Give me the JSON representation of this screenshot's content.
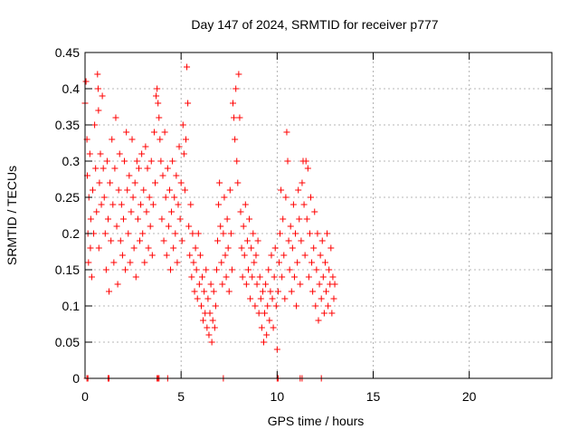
{
  "colors": {
    "series": "#ff0000",
    "grid": "#a0a0a0",
    "axis": "#000000",
    "background": "#ffffff"
  },
  "chart_data": {
    "type": "scatter",
    "title": "Day 147 of 2024, SRMTID for receiver p777",
    "xlabel": "GPS time / hours",
    "ylabel": "SRMTID / TECUs",
    "xlim": [
      0,
      24.3
    ],
    "ylim": [
      0,
      0.45
    ],
    "xticks": [
      0,
      5,
      10,
      15,
      20
    ],
    "xtick_labels": [
      "0",
      "5",
      "10",
      "15",
      "20"
    ],
    "yticks": [
      0,
      0.05,
      0.1,
      0.15,
      0.2,
      0.25,
      0.3,
      0.35,
      0.4,
      0.45
    ],
    "ytick_labels": [
      "0",
      "0.05",
      "0.1",
      "0.15",
      "0.2",
      "0.25",
      "0.3",
      "0.35",
      "0.4",
      "0.45"
    ],
    "grid": true,
    "legend": "none",
    "marker": "plus",
    "series": [
      {
        "name": "SRMTID",
        "points": [
          [
            0.0,
            0.38
          ],
          [
            0.05,
            0.41
          ],
          [
            0.1,
            0.33
          ],
          [
            0.12,
            0.28
          ],
          [
            0.15,
            0.2
          ],
          [
            0.18,
            0.16
          ],
          [
            0.2,
            0.25
          ],
          [
            0.25,
            0.31
          ],
          [
            0.28,
            0.18
          ],
          [
            0.3,
            0.22
          ],
          [
            0.35,
            0.14
          ],
          [
            0.4,
            0.26
          ],
          [
            0.45,
            0.2
          ],
          [
            0.5,
            0.35
          ],
          [
            0.55,
            0.29
          ],
          [
            0.6,
            0.23
          ],
          [
            0.65,
            0.42
          ],
          [
            0.68,
            0.4
          ],
          [
            0.7,
            0.37
          ],
          [
            0.72,
            0.18
          ],
          [
            0.75,
            0.27
          ],
          [
            0.8,
            0.31
          ],
          [
            0.85,
            0.24
          ],
          [
            0.9,
            0.39
          ],
          [
            0.95,
            0.29
          ],
          [
            1.0,
            0.25
          ],
          [
            1.05,
            0.2
          ],
          [
            1.1,
            0.15
          ],
          [
            1.15,
            0.3
          ],
          [
            1.2,
            0.22
          ],
          [
            1.25,
            0.12
          ],
          [
            1.3,
            0.27
          ],
          [
            1.35,
            0.19
          ],
          [
            1.4,
            0.33
          ],
          [
            1.45,
            0.24
          ],
          [
            1.5,
            0.16
          ],
          [
            1.55,
            0.29
          ],
          [
            1.6,
            0.36
          ],
          [
            1.65,
            0.21
          ],
          [
            1.7,
            0.13
          ],
          [
            1.75,
            0.26
          ],
          [
            1.8,
            0.31
          ],
          [
            1.85,
            0.19
          ],
          [
            1.9,
            0.24
          ],
          [
            1.95,
            0.17
          ],
          [
            2.0,
            0.22
          ],
          [
            2.05,
            0.3
          ],
          [
            2.1,
            0.15
          ],
          [
            2.15,
            0.34
          ],
          [
            2.2,
            0.26
          ],
          [
            2.25,
            0.2
          ],
          [
            2.3,
            0.28
          ],
          [
            2.35,
            0.16
          ],
          [
            2.4,
            0.23
          ],
          [
            2.45,
            0.33
          ],
          [
            2.5,
            0.25
          ],
          [
            2.55,
            0.18
          ],
          [
            2.6,
            0.27
          ],
          [
            2.65,
            0.14
          ],
          [
            2.7,
            0.3
          ],
          [
            2.75,
            0.22
          ],
          [
            2.8,
            0.29
          ],
          [
            2.85,
            0.19
          ],
          [
            2.9,
            0.24
          ],
          [
            2.95,
            0.31
          ],
          [
            3.0,
            0.2
          ],
          [
            3.05,
            0.26
          ],
          [
            3.1,
            0.16
          ],
          [
            3.15,
            0.32
          ],
          [
            3.2,
            0.23
          ],
          [
            3.25,
            0.29
          ],
          [
            3.3,
            0.18
          ],
          [
            3.35,
            0.25
          ],
          [
            3.4,
            0.21
          ],
          [
            3.45,
            0.3
          ],
          [
            3.5,
            0.17
          ],
          [
            3.55,
            0.24
          ],
          [
            3.6,
            0.34
          ],
          [
            3.65,
            0.27
          ],
          [
            3.7,
            0.39
          ],
          [
            3.75,
            0.4
          ],
          [
            3.8,
            0.38
          ],
          [
            3.85,
            0.36
          ],
          [
            3.9,
            0.33
          ],
          [
            3.95,
            0.3
          ],
          [
            4.0,
            0.22
          ],
          [
            4.05,
            0.28
          ],
          [
            4.1,
            0.19
          ],
          [
            4.15,
            0.34
          ],
          [
            4.2,
            0.25
          ],
          [
            4.25,
            0.17
          ],
          [
            4.3,
            0.29
          ],
          [
            4.35,
            0.21
          ],
          [
            4.4,
            0.26
          ],
          [
            4.45,
            0.15
          ],
          [
            4.5,
            0.23
          ],
          [
            4.55,
            0.3
          ],
          [
            4.6,
            0.18
          ],
          [
            4.65,
            0.25
          ],
          [
            4.7,
            0.2
          ],
          [
            4.75,
            0.28
          ],
          [
            4.8,
            0.16
          ],
          [
            4.85,
            0.24
          ],
          [
            4.9,
            0.32
          ],
          [
            4.95,
            0.22
          ],
          [
            5.0,
            0.27
          ],
          [
            5.05,
            0.19
          ],
          [
            5.1,
            0.35
          ],
          [
            5.15,
            0.31
          ],
          [
            5.2,
            0.26
          ],
          [
            5.25,
            0.33
          ],
          [
            5.3,
            0.43
          ],
          [
            5.35,
            0.38
          ],
          [
            5.4,
            0.21
          ],
          [
            5.45,
            0.17
          ],
          [
            5.5,
            0.24
          ],
          [
            5.55,
            0.14
          ],
          [
            5.6,
            0.2
          ],
          [
            5.65,
            0.16
          ],
          [
            5.7,
            0.12
          ],
          [
            5.75,
            0.18
          ],
          [
            5.8,
            0.15
          ],
          [
            5.85,
            0.11
          ],
          [
            5.9,
            0.2
          ],
          [
            5.95,
            0.13
          ],
          [
            6.0,
            0.17
          ],
          [
            6.05,
            0.1
          ],
          [
            6.1,
            0.14
          ],
          [
            6.15,
            0.08
          ],
          [
            6.2,
            0.12
          ],
          [
            6.25,
            0.09
          ],
          [
            6.3,
            0.15
          ],
          [
            6.35,
            0.07
          ],
          [
            6.4,
            0.11
          ],
          [
            6.45,
            0.06
          ],
          [
            6.5,
            0.09
          ],
          [
            6.55,
            0.13
          ],
          [
            6.6,
            0.05
          ],
          [
            6.65,
            0.08
          ],
          [
            6.7,
            0.12
          ],
          [
            6.75,
            0.07
          ],
          [
            6.8,
            0.1
          ],
          [
            6.85,
            0.15
          ],
          [
            6.9,
            0.19
          ],
          [
            6.95,
            0.24
          ],
          [
            7.0,
            0.27
          ],
          [
            7.05,
            0.21
          ],
          [
            7.1,
            0.16
          ],
          [
            7.15,
            0.13
          ],
          [
            7.2,
            0.2
          ],
          [
            7.25,
            0.25
          ],
          [
            7.3,
            0.17
          ],
          [
            7.35,
            0.14
          ],
          [
            7.4,
            0.22
          ],
          [
            7.45,
            0.18
          ],
          [
            7.5,
            0.12
          ],
          [
            7.55,
            0.26
          ],
          [
            7.6,
            0.2
          ],
          [
            7.65,
            0.15
          ],
          [
            7.7,
            0.38
          ],
          [
            7.75,
            0.36
          ],
          [
            7.8,
            0.33
          ],
          [
            7.85,
            0.4
          ],
          [
            7.9,
            0.3
          ],
          [
            7.95,
            0.27
          ],
          [
            8.0,
            0.42
          ],
          [
            8.05,
            0.36
          ],
          [
            8.1,
            0.23
          ],
          [
            8.15,
            0.18
          ],
          [
            8.2,
            0.14
          ],
          [
            8.25,
            0.21
          ],
          [
            8.3,
            0.17
          ],
          [
            8.35,
            0.24
          ],
          [
            8.4,
            0.13
          ],
          [
            8.45,
            0.19
          ],
          [
            8.5,
            0.15
          ],
          [
            8.55,
            0.22
          ],
          [
            8.6,
            0.11
          ],
          [
            8.65,
            0.18
          ],
          [
            8.7,
            0.14
          ],
          [
            8.75,
            0.2
          ],
          [
            8.8,
            0.16
          ],
          [
            8.85,
            0.1
          ],
          [
            8.9,
            0.17
          ],
          [
            8.95,
            0.13
          ],
          [
            9.0,
            0.19
          ],
          [
            9.05,
            0.09
          ],
          [
            9.1,
            0.14
          ],
          [
            9.15,
            0.11
          ],
          [
            9.2,
            0.07
          ],
          [
            9.25,
            0.12
          ],
          [
            9.3,
            0.05
          ],
          [
            9.35,
            0.09
          ],
          [
            9.4,
            0.13
          ],
          [
            9.45,
            0.06
          ],
          [
            9.5,
            0.1
          ],
          [
            9.55,
            0.15
          ],
          [
            9.6,
            0.08
          ],
          [
            9.65,
            0.12
          ],
          [
            9.7,
            0.17
          ],
          [
            9.75,
            0.11
          ],
          [
            9.8,
            0.07
          ],
          [
            9.85,
            0.14
          ],
          [
            9.9,
            0.18
          ],
          [
            9.95,
            0.1
          ],
          [
            10.0,
            0.04
          ],
          [
            10.05,
            0.12
          ],
          [
            10.1,
            0.16
          ],
          [
            10.15,
            0.2
          ],
          [
            10.2,
            0.26
          ],
          [
            10.25,
            0.14
          ],
          [
            10.3,
            0.22
          ],
          [
            10.35,
            0.17
          ],
          [
            10.4,
            0.11
          ],
          [
            10.45,
            0.25
          ],
          [
            10.5,
            0.34
          ],
          [
            10.55,
            0.3
          ],
          [
            10.6,
            0.19
          ],
          [
            10.65,
            0.15
          ],
          [
            10.7,
            0.21
          ],
          [
            10.75,
            0.12
          ],
          [
            10.8,
            0.18
          ],
          [
            10.85,
            0.24
          ],
          [
            10.9,
            0.14
          ],
          [
            10.95,
            0.2
          ],
          [
            11.0,
            0.1
          ],
          [
            11.05,
            0.16
          ],
          [
            11.1,
            0.26
          ],
          [
            11.15,
            0.22
          ],
          [
            11.2,
            0.13
          ],
          [
            11.25,
            0.19
          ],
          [
            11.3,
            0.27
          ],
          [
            11.35,
            0.3
          ],
          [
            11.4,
            0.24
          ],
          [
            11.45,
            0.17
          ],
          [
            11.5,
            0.3
          ],
          [
            11.55,
            0.22
          ],
          [
            11.6,
            0.29
          ],
          [
            11.65,
            0.14
          ],
          [
            11.7,
            0.2
          ],
          [
            11.75,
            0.25
          ],
          [
            11.8,
            0.16
          ],
          [
            11.85,
            0.12
          ],
          [
            11.9,
            0.18
          ],
          [
            11.95,
            0.23
          ],
          [
            12.0,
            0.1
          ],
          [
            12.05,
            0.15
          ],
          [
            12.1,
            0.2
          ],
          [
            12.15,
            0.08
          ],
          [
            12.2,
            0.13
          ],
          [
            12.25,
            0.17
          ],
          [
            12.3,
            0.11
          ],
          [
            12.35,
            0.19
          ],
          [
            12.4,
            0.14
          ],
          [
            12.45,
            0.09
          ],
          [
            12.5,
            0.16
          ],
          [
            12.55,
            0.12
          ],
          [
            12.6,
            0.2
          ],
          [
            12.65,
            0.1
          ],
          [
            12.7,
            0.15
          ],
          [
            12.75,
            0.13
          ],
          [
            12.8,
            0.18
          ],
          [
            12.85,
            0.09
          ],
          [
            12.9,
            0.14
          ],
          [
            12.95,
            0.11
          ],
          [
            13.0,
            0.13
          ],
          [
            0.1,
            0.0
          ],
          [
            0.15,
            0.0
          ],
          [
            1.2,
            0.0
          ],
          [
            1.25,
            0.0
          ],
          [
            3.75,
            0.0
          ],
          [
            3.8,
            0.0
          ],
          [
            3.85,
            0.0
          ],
          [
            4.3,
            0.0
          ],
          [
            7.2,
            0.0
          ],
          [
            10.0,
            0.0
          ],
          [
            10.05,
            0.0
          ],
          [
            11.2,
            0.0
          ],
          [
            11.3,
            0.0
          ],
          [
            12.3,
            0.0
          ]
        ]
      }
    ]
  }
}
